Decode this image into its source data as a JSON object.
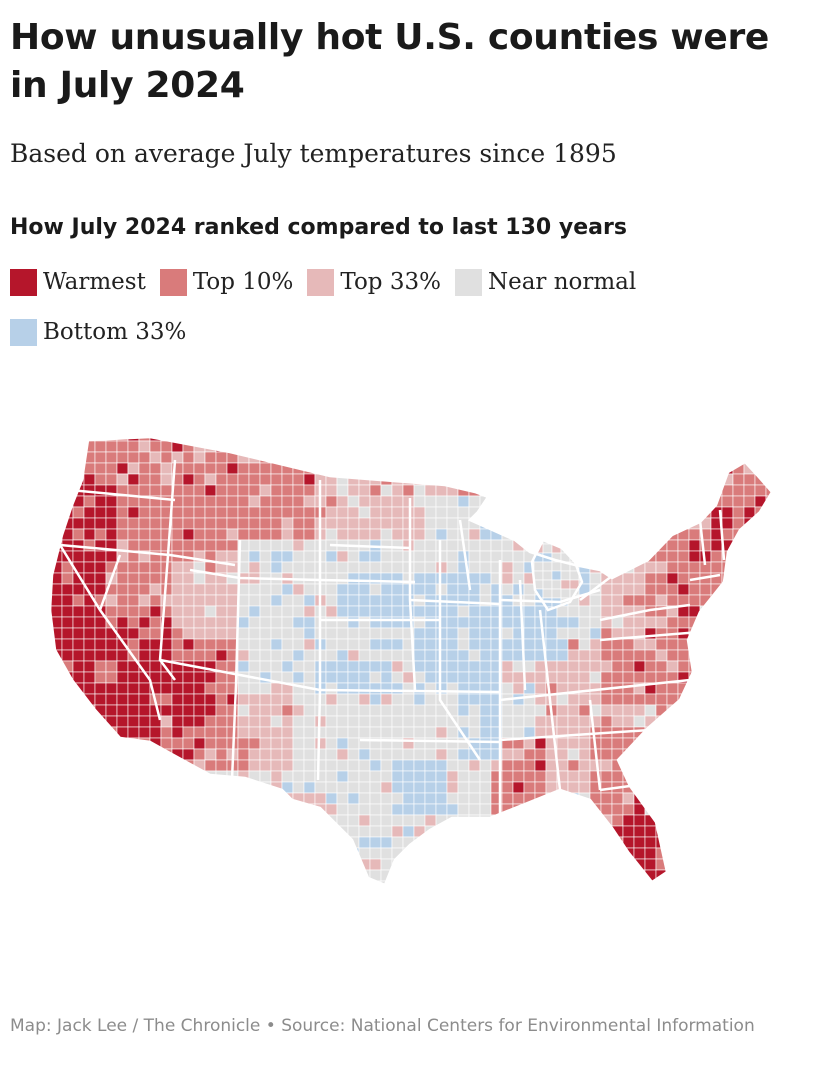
{
  "title": "How unusually hot U.S. counties were in July 2024",
  "subtitle": "Based on average July temperatures since 1895",
  "legend": {
    "heading": "How July 2024 ranked compared to last 130 years",
    "items": [
      {
        "key": "warmest",
        "label": "Warmest",
        "color": "#b5162b"
      },
      {
        "key": "top10",
        "label": "Top 10%",
        "color": "#d97b7b"
      },
      {
        "key": "top33",
        "label": "Top 33%",
        "color": "#e6b9b9"
      },
      {
        "key": "normal",
        "label": "Near normal",
        "color": "#e0e0e0"
      },
      {
        "key": "bottom33",
        "label": "Bottom 33%",
        "color": "#b7d0e8"
      }
    ]
  },
  "map": {
    "region": "Contiguous United States",
    "unit": "county",
    "regions_by_category": {
      "warmest": [
        "Oregon west",
        "California",
        "Nevada south",
        "Arizona west",
        "New Hampshire",
        "South Florida"
      ],
      "top10": [
        "Washington",
        "Idaho",
        "Montana north",
        "Utah",
        "New Mexico",
        "Georgia",
        "Carolinas",
        "Virginia",
        "New England"
      ],
      "top33": [
        "North Dakota",
        "Wyoming",
        "Texas west",
        "Tennessee",
        "Kentucky",
        "Pennsylvania"
      ],
      "normal": [
        "Colorado",
        "Nebraska",
        "Kansas",
        "Oklahoma",
        "Texas",
        "Minnesota",
        "Wisconsin",
        "Michigan"
      ],
      "bottom33": [
        "Iowa",
        "Illinois",
        "Indiana",
        "Missouri north",
        "Kansas east",
        "Texas north central"
      ]
    }
  },
  "credit": "Map: Jack Lee / The Chronicle • Source: National Centers for Environmental Information"
}
